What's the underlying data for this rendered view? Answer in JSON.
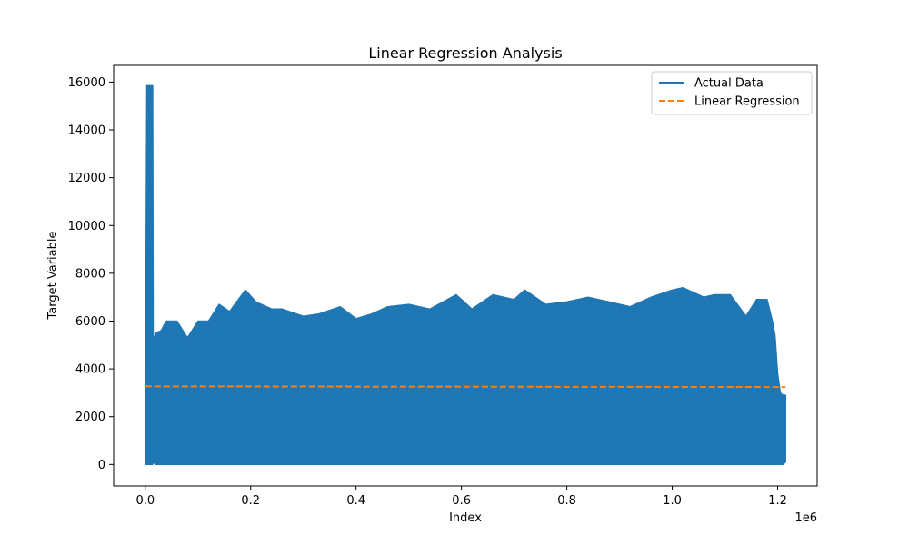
{
  "chart_data": {
    "type": "line",
    "title": "Linear Regression Analysis",
    "xlabel": "Index",
    "ylabel": "Target Variable",
    "x_offset_text": "1e6",
    "xlim": [
      -60000,
      1275000
    ],
    "ylim": [
      -900,
      16700
    ],
    "x_ticks": [
      0,
      200000,
      400000,
      600000,
      800000,
      1000000,
      1200000
    ],
    "x_tick_labels": [
      "0.0",
      "0.2",
      "0.4",
      "0.6",
      "0.8",
      "1.0",
      "1.2"
    ],
    "y_ticks": [
      0,
      2000,
      4000,
      6000,
      8000,
      10000,
      12000,
      14000,
      16000
    ],
    "y_tick_labels": [
      "0",
      "2000",
      "4000",
      "6000",
      "8000",
      "10000",
      "12000",
      "14000",
      "16000"
    ],
    "grid": false,
    "legend_position": "upper-right",
    "series": [
      {
        "name": "Actual Data",
        "style": "solid",
        "color": "#1f77b4",
        "envelope_x": [
          0,
          3000,
          5000,
          14000,
          15000,
          20000,
          30000,
          40000,
          60000,
          80000,
          100000,
          120000,
          140000,
          160000,
          190000,
          210000,
          240000,
          260000,
          300000,
          330000,
          370000,
          400000,
          430000,
          460000,
          500000,
          540000,
          590000,
          620000,
          660000,
          700000,
          720000,
          760000,
          800000,
          840000,
          880000,
          920000,
          960000,
          1000000,
          1020000,
          1060000,
          1080000,
          1110000,
          1140000,
          1160000,
          1180000,
          1190000,
          1195000,
          1200000,
          1205000,
          1210000,
          1215000
        ],
        "envelope_max": [
          0,
          15850,
          15850,
          15850,
          5200,
          5500,
          5600,
          6000,
          6000,
          5300,
          6000,
          6000,
          6700,
          6400,
          7300,
          6800,
          6500,
          6500,
          6200,
          6300,
          6600,
          6100,
          6300,
          6600,
          6700,
          6500,
          7100,
          6500,
          7100,
          6900,
          7300,
          6700,
          6800,
          7000,
          6800,
          6600,
          7000,
          7300,
          7400,
          7000,
          7100,
          7100,
          6200,
          6900,
          6900,
          6000,
          5400,
          3800,
          3000,
          2900,
          2900
        ],
        "envelope_min": [
          0,
          0,
          0,
          0,
          100,
          0,
          0,
          0,
          0,
          0,
          0,
          0,
          0,
          0,
          0,
          0,
          0,
          0,
          0,
          0,
          0,
          0,
          0,
          0,
          0,
          0,
          0,
          0,
          0,
          0,
          0,
          0,
          0,
          0,
          0,
          0,
          0,
          0,
          0,
          0,
          0,
          0,
          0,
          0,
          0,
          0,
          0,
          0,
          0,
          0,
          100
        ]
      },
      {
        "name": "Linear Regression",
        "style": "dashed",
        "color": "#ff7f0e",
        "x": [
          0,
          1215000
        ],
        "y": [
          3270,
          3240
        ]
      }
    ]
  }
}
